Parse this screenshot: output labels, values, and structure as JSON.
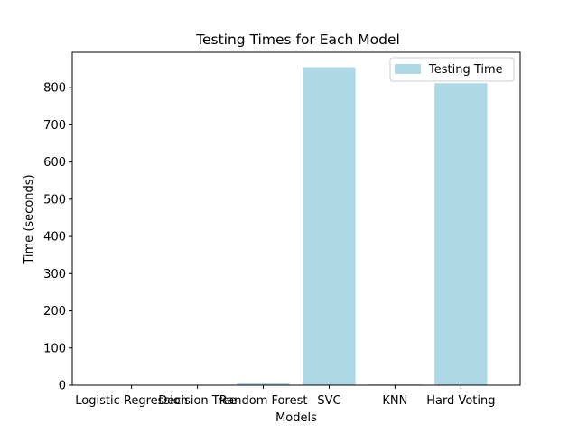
{
  "chart_data": {
    "type": "bar",
    "title": "Testing Times for Each Model",
    "xlabel": "Models",
    "ylabel": "Time (seconds)",
    "categories": [
      "Logistic Regression",
      "Decision Tree",
      "Random Forest",
      "SVC",
      "KNN",
      "Hard Voting"
    ],
    "series": [
      {
        "name": "Testing Time",
        "values": [
          0.3,
          0.3,
          5.0,
          855.0,
          2.0,
          812.0
        ],
        "color": "#add8e6"
      }
    ],
    "ylim": [
      0,
      895
    ],
    "yticks": [
      0,
      100,
      200,
      300,
      400,
      500,
      600,
      700,
      800
    ],
    "grid": false,
    "legend_position": "top-right"
  }
}
